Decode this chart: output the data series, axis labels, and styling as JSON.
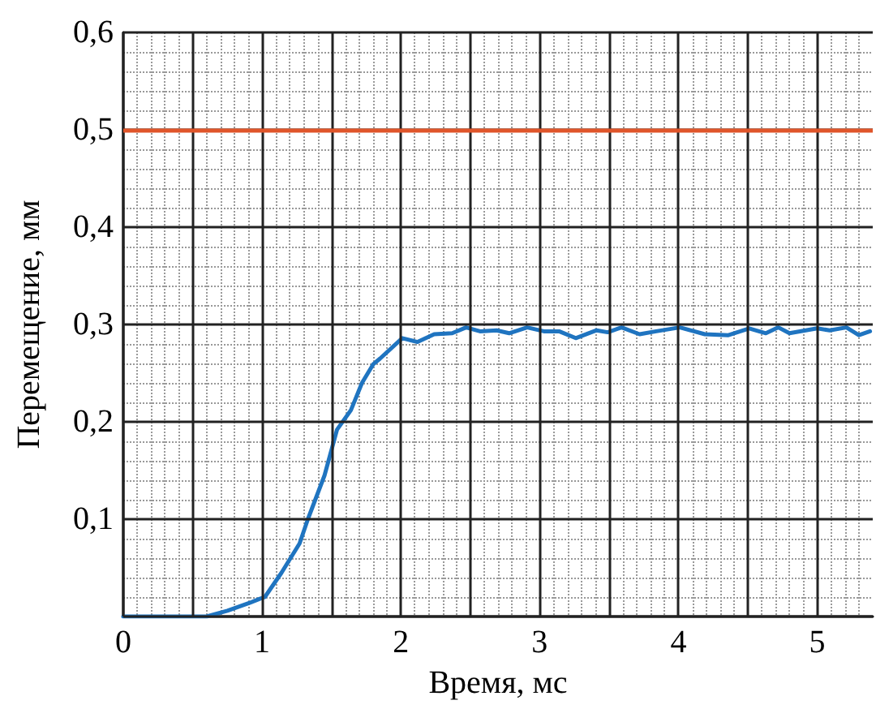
{
  "chart_data": {
    "type": "line",
    "xlabel": "Время, мс",
    "ylabel": "Перемещение, мм",
    "xlim": [
      0,
      5.4
    ],
    "ylim": [
      0,
      0.6
    ],
    "xticks": [
      0,
      {
        "value": 0.5,
        "label": null
      },
      1,
      {
        "value": 1.5,
        "label": null
      },
      2,
      {
        "value": 2.5,
        "label": null
      },
      3,
      {
        "value": 3.5,
        "label": null
      },
      4,
      {
        "value": 4.5,
        "label": null
      },
      5
    ],
    "yticks": [
      {
        "value": 0,
        "label": null
      },
      {
        "value": 0.1,
        "label": "0,1"
      },
      {
        "value": 0.2,
        "label": "0,2"
      },
      {
        "value": 0.3,
        "label": "0,3"
      },
      {
        "value": 0.4,
        "label": "0,4"
      },
      {
        "value": 0.5,
        "label": "0,5"
      },
      {
        "value": 0.6,
        "label": "0,6"
      }
    ],
    "grid": true,
    "marker": "none",
    "line_style": "solid",
    "ref_lines": [
      {
        "axis": "y",
        "value": 0.5,
        "label": null,
        "color": "#e0552a",
        "line_style": "solid"
      }
    ],
    "series": [
      {
        "color": "#1f74c0",
        "x": [
          0,
          0.6,
          0.75,
          0.91,
          0.98,
          1.02,
          1.14,
          1.27,
          1.33,
          1.45,
          1.54,
          1.64,
          1.72,
          1.8,
          1.85,
          2.01,
          2.12,
          2.24,
          2.37,
          2.47,
          2.57,
          2.69,
          2.78,
          2.91,
          3.03,
          3.14,
          3.26,
          3.41,
          3.49,
          3.59,
          3.72,
          3.84,
          4.01,
          4.19,
          4.36,
          4.51,
          4.63,
          4.72,
          4.8,
          5.0,
          5.09,
          5.21,
          5.3,
          5.38
        ],
        "values": [
          0,
          0,
          0.006,
          0.014,
          0.018,
          0.02,
          0.045,
          0.075,
          0.1,
          0.145,
          0.192,
          0.212,
          0.24,
          0.259,
          0.265,
          0.286,
          0.282,
          0.29,
          0.291,
          0.297,
          0.293,
          0.294,
          0.291,
          0.297,
          0.293,
          0.293,
          0.286,
          0.294,
          0.292,
          0.297,
          0.29,
          0.293,
          0.297,
          0.29,
          0.289,
          0.296,
          0.291,
          0.297,
          0.291,
          0.296,
          0.294,
          0.297,
          0.289,
          0.293
        ]
      }
    ]
  }
}
